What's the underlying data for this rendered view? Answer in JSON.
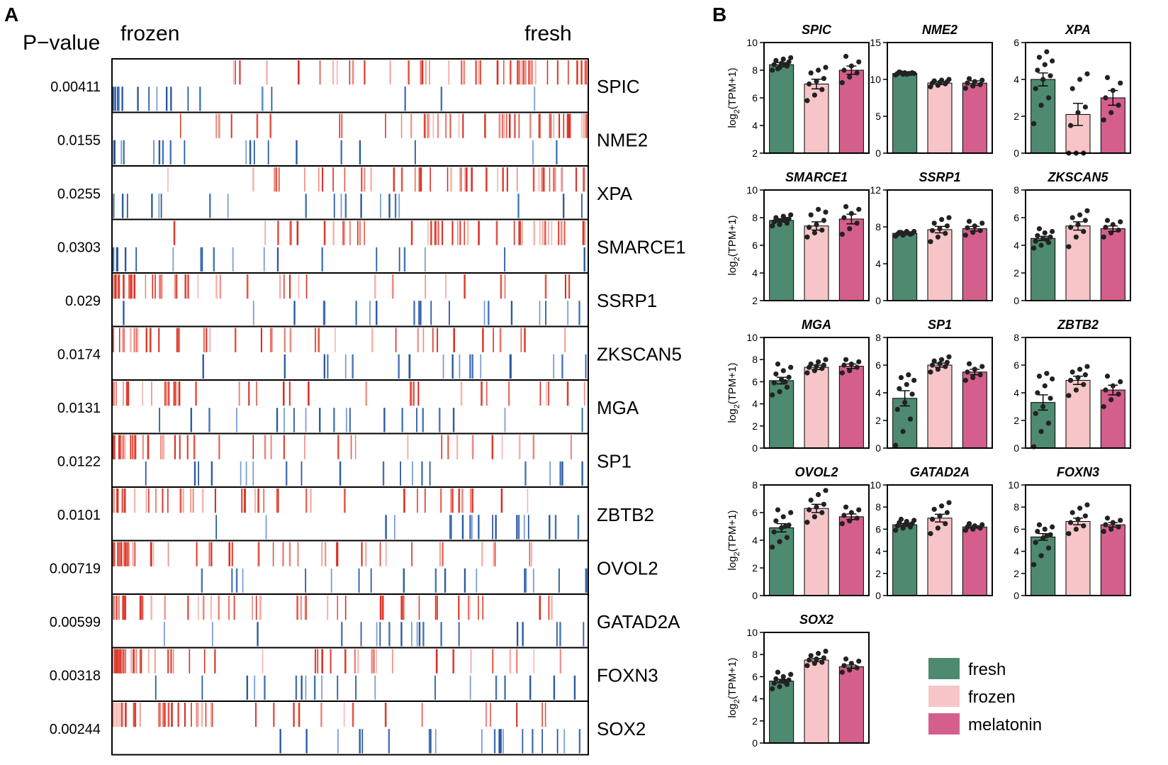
{
  "panel_a": {
    "panel_label": "A",
    "pvalue_header": "P−value",
    "left_header": "frozen",
    "right_header": "fresh",
    "colors": {
      "up": "#d73027",
      "down": "#2c5aa0"
    },
    "rows": [
      {
        "gene": "SPIC",
        "pvalue": "0.00411",
        "pattern": "fresh-up"
      },
      {
        "gene": "NME2",
        "pvalue": "0.0155",
        "pattern": "fresh-up"
      },
      {
        "gene": "XPA",
        "pvalue": "0.0255",
        "pattern": "fresh-up"
      },
      {
        "gene": "SMARCE1",
        "pvalue": "0.0303",
        "pattern": "fresh-up"
      },
      {
        "gene": "SSRP1",
        "pvalue": "0.029",
        "pattern": "frozen-up"
      },
      {
        "gene": "ZKSCAN5",
        "pvalue": "0.0174",
        "pattern": "frozen-up"
      },
      {
        "gene": "MGA",
        "pvalue": "0.0131",
        "pattern": "frozen-up"
      },
      {
        "gene": "SP1",
        "pvalue": "0.0122",
        "pattern": "frozen-up"
      },
      {
        "gene": "ZBTB2",
        "pvalue": "0.0101",
        "pattern": "frozen-up"
      },
      {
        "gene": "OVOL2",
        "pvalue": "0.00719",
        "pattern": "frozen-up"
      },
      {
        "gene": "GATAD2A",
        "pvalue": "0.00599",
        "pattern": "frozen-up"
      },
      {
        "gene": "FOXN3",
        "pvalue": "0.00318",
        "pattern": "frozen-up"
      },
      {
        "gene": "SOX2",
        "pvalue": "0.00244",
        "pattern": "frozen-up"
      }
    ]
  },
  "chart_data": [
    {
      "type": "bar",
      "panel": "B",
      "ylabel": "log2(TPM+1)",
      "categories": [
        "fresh",
        "frozen",
        "melatonin"
      ],
      "colors": {
        "fresh": "#4e8a6f",
        "frozen": "#f7c5c7",
        "melatonin": "#d45f8c",
        "dots": "#222222"
      },
      "panels": [
        {
          "title": "SPIC",
          "ylim": [
            2,
            10
          ],
          "yticks": [
            2,
            4,
            6,
            8,
            10
          ],
          "values": [
            8.4,
            7.0,
            8.0
          ],
          "errors": [
            0.15,
            0.35,
            0.3
          ],
          "points": [
            [
              8.0,
              8.2,
              8.3,
              8.4,
              8.5,
              8.6,
              8.7,
              8.8,
              8.9,
              8.1,
              8.4
            ],
            [
              5.8,
              6.2,
              6.6,
              7.0,
              7.2,
              7.4,
              7.8,
              8.0,
              8.2
            ],
            [
              7.1,
              7.5,
              7.8,
              8.0,
              8.3,
              8.6,
              9.0
            ]
          ]
        },
        {
          "title": "NME2",
          "ylim": [
            0,
            15
          ],
          "yticks": [
            0,
            5,
            10,
            15
          ],
          "values": [
            10.8,
            9.5,
            9.5
          ],
          "errors": [
            0.1,
            0.2,
            0.3
          ],
          "points": [
            [
              10.6,
              10.7,
              10.8,
              10.8,
              10.9,
              10.9,
              11.0,
              10.7,
              10.8,
              10.9,
              10.8
            ],
            [
              9.0,
              9.2,
              9.4,
              9.5,
              9.6,
              9.7,
              9.8,
              9.9,
              10.0
            ],
            [
              8.8,
              9.1,
              9.3,
              9.5,
              9.7,
              9.9,
              10.1
            ]
          ]
        },
        {
          "title": "XPA",
          "ylim": [
            0,
            6
          ],
          "yticks": [
            0,
            2,
            4,
            6
          ],
          "values": [
            4.0,
            2.1,
            3.0
          ],
          "errors": [
            0.35,
            0.6,
            0.4
          ],
          "points": [
            [
              1.6,
              2.6,
              3.0,
              3.5,
              4.0,
              4.2,
              4.5,
              4.8,
              5.0,
              5.2,
              5.5
            ],
            [
              0.0,
              0.0,
              0.0,
              1.5,
              2.2,
              2.5,
              3.5,
              4.0,
              4.3
            ],
            [
              1.8,
              2.2,
              2.6,
              3.0,
              3.4,
              3.8,
              4.1
            ]
          ]
        },
        {
          "title": "SMARCE1",
          "ylim": [
            2,
            10
          ],
          "yticks": [
            2,
            4,
            6,
            8,
            10
          ],
          "values": [
            7.8,
            7.4,
            7.9
          ],
          "errors": [
            0.12,
            0.3,
            0.35
          ],
          "points": [
            [
              7.4,
              7.5,
              7.6,
              7.7,
              7.8,
              7.9,
              8.0,
              8.1,
              8.2,
              7.8,
              7.9
            ],
            [
              6.6,
              6.9,
              7.1,
              7.3,
              7.5,
              7.8,
              8.2,
              8.6,
              8.4
            ],
            [
              6.8,
              7.2,
              7.6,
              8.0,
              8.3,
              8.6,
              8.8
            ]
          ]
        },
        {
          "title": "SSRP1",
          "ylim": [
            0,
            12
          ],
          "yticks": [
            0,
            4,
            8,
            12
          ],
          "values": [
            7.3,
            7.7,
            7.8
          ],
          "errors": [
            0.1,
            0.35,
            0.25
          ],
          "points": [
            [
              7.0,
              7.1,
              7.2,
              7.2,
              7.3,
              7.3,
              7.4,
              7.5,
              7.5,
              7.4,
              7.3
            ],
            [
              6.4,
              6.9,
              7.3,
              7.6,
              7.8,
              8.1,
              8.4,
              8.8,
              9.0
            ],
            [
              7.1,
              7.4,
              7.6,
              7.9,
              8.1,
              8.4,
              8.6
            ]
          ]
        },
        {
          "title": "ZKSCAN5",
          "ylim": [
            0,
            8
          ],
          "yticks": [
            0,
            2,
            4,
            6,
            8
          ],
          "values": [
            4.5,
            5.4,
            5.2
          ],
          "errors": [
            0.15,
            0.3,
            0.2
          ],
          "points": [
            [
              3.8,
              4.0,
              4.2,
              4.3,
              4.5,
              4.6,
              4.7,
              4.9,
              5.0,
              5.2,
              4.4
            ],
            [
              3.9,
              4.6,
              5.0,
              5.3,
              5.5,
              5.8,
              6.0,
              6.2,
              6.5
            ],
            [
              4.6,
              4.9,
              5.1,
              5.3,
              5.5,
              5.7,
              5.8
            ]
          ]
        },
        {
          "title": "MGA",
          "ylim": [
            0,
            10
          ],
          "yticks": [
            0,
            2,
            4,
            6,
            8,
            10
          ],
          "values": [
            6.1,
            7.3,
            7.4
          ],
          "errors": [
            0.3,
            0.2,
            0.2
          ],
          "points": [
            [
              4.8,
              5.1,
              5.5,
              5.9,
              6.2,
              6.4,
              6.7,
              7.0,
              7.3,
              7.6,
              6.0
            ],
            [
              6.8,
              7.0,
              7.2,
              7.3,
              7.4,
              7.5,
              7.6,
              7.8,
              8.0
            ],
            [
              6.8,
              7.0,
              7.3,
              7.5,
              7.6,
              7.8,
              8.0
            ]
          ]
        },
        {
          "title": "SP1",
          "ylim": [
            0,
            8
          ],
          "yticks": [
            0,
            2,
            4,
            6,
            8
          ],
          "values": [
            3.6,
            6.0,
            5.5
          ],
          "errors": [
            0.55,
            0.15,
            0.2
          ],
          "points": [
            [
              0.2,
              1.2,
              2.1,
              2.8,
              3.3,
              3.9,
              4.3,
              4.6,
              4.9,
              5.1,
              5.3
            ],
            [
              5.5,
              5.7,
              5.9,
              6.0,
              6.1,
              6.2,
              6.3,
              6.4,
              6.6
            ],
            [
              4.9,
              5.1,
              5.3,
              5.5,
              5.7,
              5.9,
              6.1
            ]
          ]
        },
        {
          "title": "ZBTB2",
          "ylim": [
            0,
            8
          ],
          "yticks": [
            0,
            2,
            4,
            6,
            8
          ],
          "values": [
            3.3,
            4.9,
            4.2
          ],
          "errors": [
            0.55,
            0.3,
            0.35
          ],
          "points": [
            [
              0.1,
              1.2,
              1.8,
              2.5,
              3.0,
              3.6,
              4.0,
              4.5,
              5.0,
              5.2,
              5.4
            ],
            [
              3.8,
              4.2,
              4.6,
              4.9,
              5.1,
              5.3,
              5.5,
              5.7,
              5.9
            ],
            [
              3.0,
              3.5,
              3.9,
              4.2,
              4.5,
              4.8,
              5.2
            ]
          ]
        },
        {
          "title": "OVOL2",
          "ylim": [
            0,
            8
          ],
          "yticks": [
            0,
            2,
            4,
            6,
            8
          ],
          "values": [
            4.9,
            6.3,
            5.7
          ],
          "errors": [
            0.3,
            0.3,
            0.2
          ],
          "points": [
            [
              3.5,
              3.9,
              4.2,
              4.6,
              4.9,
              5.1,
              5.4,
              5.7,
              6.0,
              6.2,
              5.0
            ],
            [
              5.3,
              5.7,
              6.0,
              6.2,
              6.4,
              6.6,
              6.9,
              7.3,
              7.6
            ],
            [
              5.2,
              5.4,
              5.6,
              5.8,
              6.0,
              6.2,
              6.4
            ]
          ]
        },
        {
          "title": "GATAD2A",
          "ylim": [
            0,
            10
          ],
          "yticks": [
            0,
            2,
            4,
            6,
            8,
            10
          ],
          "values": [
            6.4,
            7.0,
            6.2
          ],
          "errors": [
            0.12,
            0.35,
            0.1
          ],
          "points": [
            [
              5.9,
              6.1,
              6.2,
              6.3,
              6.4,
              6.5,
              6.6,
              6.7,
              6.8,
              6.9,
              6.4
            ],
            [
              5.6,
              6.1,
              6.5,
              6.9,
              7.2,
              7.5,
              7.8,
              8.1,
              8.4
            ],
            [
              5.9,
              6.0,
              6.1,
              6.2,
              6.3,
              6.4,
              6.5
            ]
          ]
        },
        {
          "title": "FOXN3",
          "ylim": [
            0,
            10
          ],
          "yticks": [
            0,
            2,
            4,
            6,
            8,
            10
          ],
          "values": [
            5.3,
            6.7,
            6.4
          ],
          "errors": [
            0.3,
            0.3,
            0.2
          ],
          "points": [
            [
              2.8,
              3.6,
              4.3,
              4.8,
              5.2,
              5.5,
              5.8,
              6.0,
              6.2,
              6.4,
              5.4
            ],
            [
              5.6,
              6.0,
              6.3,
              6.6,
              6.9,
              7.2,
              7.5,
              7.9,
              8.2
            ],
            [
              5.8,
              6.0,
              6.2,
              6.4,
              6.6,
              6.8,
              7.0
            ]
          ]
        },
        {
          "title": "SOX2",
          "ylim": [
            0,
            10
          ],
          "yticks": [
            0,
            2,
            4,
            6,
            8,
            10
          ],
          "values": [
            5.6,
            7.5,
            6.9
          ],
          "errors": [
            0.15,
            0.15,
            0.15
          ],
          "points": [
            [
              4.9,
              5.1,
              5.3,
              5.4,
              5.6,
              5.7,
              5.8,
              6.0,
              6.2,
              6.4,
              5.5
            ],
            [
              7.0,
              7.2,
              7.3,
              7.5,
              7.6,
              7.7,
              7.9,
              8.1,
              8.3
            ],
            [
              6.4,
              6.6,
              6.8,
              7.0,
              7.2,
              7.4,
              7.6
            ]
          ]
        }
      ]
    }
  ],
  "panel_b": {
    "panel_label": "B",
    "ylabel_main": "log",
    "ylabel_sub": "2",
    "ylabel_rest": "(TPM+1)",
    "legend": [
      {
        "key": "fresh",
        "label": "fresh"
      },
      {
        "key": "frozen",
        "label": "frozen"
      },
      {
        "key": "melatonin",
        "label": "melatonin"
      }
    ]
  }
}
